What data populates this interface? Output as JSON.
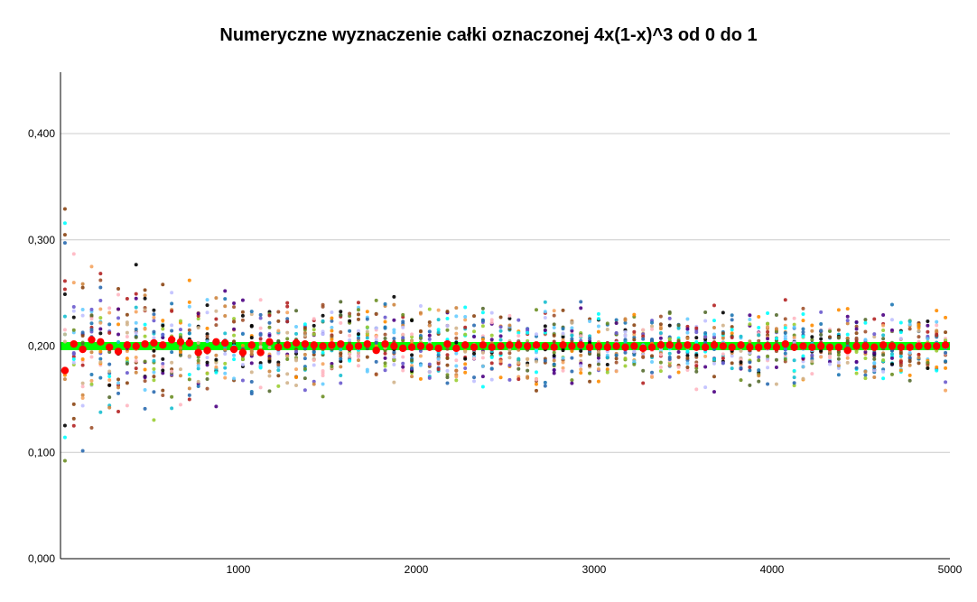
{
  "chart_data": {
    "type": "scatter",
    "title": "Numeryczne wyznaczenie całki oznaczonej 4x(1-x)^3 od 0 do 1",
    "xlabel": "",
    "ylabel": "",
    "xlim": [
      0,
      5000
    ],
    "ylim": [
      0,
      0.46
    ],
    "grid": "horizontal",
    "x_ticks": [
      1000,
      2000,
      3000,
      4000,
      5000
    ],
    "x_tick_labels": [
      "1000",
      "2000",
      "3000",
      "4000",
      "5000"
    ],
    "y_ticks": [
      0.0,
      0.1,
      0.2,
      0.3,
      0.4
    ],
    "y_tick_labels": [
      "0,000",
      "0,100",
      "0,200",
      "0,300",
      "0,400"
    ],
    "reference_line": {
      "y": 0.2,
      "color": "#00ff00"
    },
    "mean_series": {
      "color": "#ff0000",
      "x": [
        25,
        75,
        125,
        175,
        225,
        275,
        325,
        375,
        425,
        475,
        525,
        575,
        625,
        675,
        725,
        775,
        825,
        875,
        925,
        975,
        1025,
        1075,
        1125,
        1175,
        1225,
        1275,
        1325,
        1375,
        1425,
        1475,
        1525,
        1575,
        1625,
        1675,
        1725,
        1775,
        1825,
        1875,
        1925,
        1975,
        2025,
        2075,
        2125,
        2175,
        2225,
        2275,
        2325,
        2375,
        2425,
        2475,
        2525,
        2575,
        2625,
        2675,
        2725,
        2775,
        2825,
        2875,
        2925,
        2975,
        3025,
        3075,
        3125,
        3175,
        3225,
        3275,
        3325,
        3375,
        3425,
        3475,
        3525,
        3575,
        3625,
        3675,
        3725,
        3775,
        3825,
        3875,
        3925,
        3975,
        4025,
        4075,
        4125,
        4175,
        4225,
        4275,
        4325,
        4375,
        4425,
        4475,
        4525,
        4575,
        4625,
        4675,
        4725,
        4775,
        4825,
        4875,
        4925,
        4975
      ],
      "y": [
        0.177,
        0.202,
        0.197,
        0.206,
        0.204,
        0.199,
        0.195,
        0.201,
        0.2,
        0.202,
        0.203,
        0.201,
        0.206,
        0.204,
        0.203,
        0.194,
        0.196,
        0.204,
        0.203,
        0.197,
        0.194,
        0.201,
        0.194,
        0.204,
        0.199,
        0.201,
        0.203,
        0.202,
        0.201,
        0.2,
        0.201,
        0.202,
        0.199,
        0.2,
        0.202,
        0.196,
        0.202,
        0.2,
        0.198,
        0.199,
        0.2,
        0.199,
        0.198,
        0.202,
        0.198,
        0.201,
        0.199,
        0.201,
        0.199,
        0.2,
        0.201,
        0.201,
        0.2,
        0.201,
        0.2,
        0.199,
        0.201,
        0.2,
        0.201,
        0.199,
        0.2,
        0.199,
        0.2,
        0.199,
        0.2,
        0.198,
        0.199,
        0.201,
        0.201,
        0.2,
        0.201,
        0.199,
        0.199,
        0.201,
        0.2,
        0.199,
        0.201,
        0.199,
        0.199,
        0.2,
        0.199,
        0.202,
        0.199,
        0.2,
        0.199,
        0.2,
        0.199,
        0.199,
        0.196,
        0.2,
        0.2,
        0.199,
        0.201,
        0.2,
        0.199,
        0.199,
        0.2,
        0.2,
        0.2,
        0.201
      ]
    },
    "sample_series": {
      "colors": [
        "#000000",
        "#1f77b4",
        "#2b6cb0",
        "#17becf",
        "#00ffff",
        "#66ccff",
        "#8b4513",
        "#cd853f",
        "#ff8c00",
        "#f4a460",
        "#6b8e23",
        "#9acd32",
        "#556b2f",
        "#6a5acd",
        "#4b0082",
        "#a0522d",
        "#b22222",
        "#d2b48c",
        "#c0c0ff",
        "#ffb6c1"
      ],
      "x_step": 50,
      "points_per_x": 18,
      "spread_at_start": 0.22,
      "spread_decay": 0.5
    }
  }
}
